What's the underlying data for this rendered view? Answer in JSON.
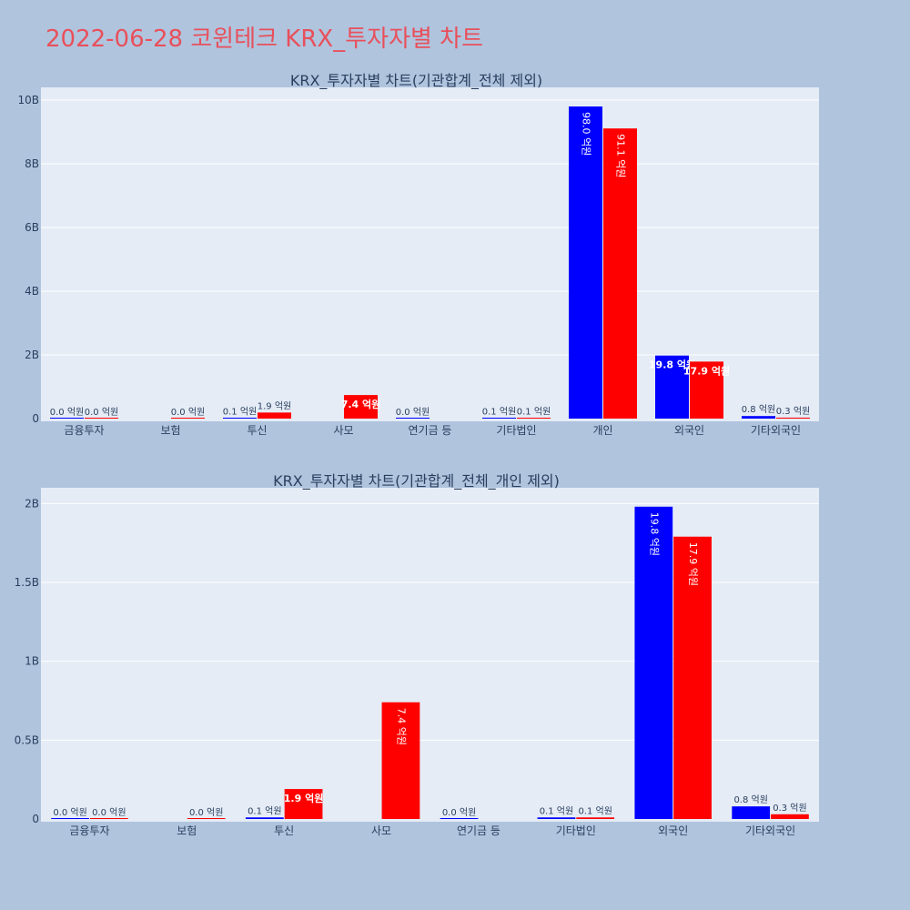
{
  "title": "2022-06-28 코윈테크 KRX_투자자별 차트",
  "colors": {
    "buy": "#0000ff",
    "sell": "#ff0000",
    "plot_bg": "#e5ecf6",
    "page_bg": "#b0c4de"
  },
  "chart_data": [
    {
      "type": "bar",
      "title": "KRX_투자자별 차트(기관합계_전체 제외)",
      "categories": [
        "금융투자",
        "보험",
        "투신",
        "사모",
        "연기금 등",
        "기타법인",
        "개인",
        "외국인",
        "기타외국인"
      ],
      "ylim": [
        0,
        10400000000
      ],
      "yticks": [
        0,
        2000000000,
        4000000000,
        6000000000,
        8000000000,
        10000000000
      ],
      "ytick_labels": [
        "0",
        "2B",
        "4B",
        "6B",
        "8B",
        "10B"
      ],
      "grid": true,
      "series": [
        {
          "color": "#0000ff",
          "values": [
            0,
            null,
            10000000,
            null,
            0,
            10000000,
            9800000000,
            1980000000,
            80000000
          ],
          "labels": [
            "0.0 억원",
            "",
            "0.1 억원",
            "",
            "0.0 억원",
            "0.1 억원",
            "98.0 억원",
            "19.8 억원",
            "0.8 억원"
          ]
        },
        {
          "color": "#ff0000",
          "values": [
            0,
            0,
            190000000,
            740000000,
            null,
            10000000,
            9110000000,
            1790000000,
            30000000
          ],
          "labels": [
            "0.0 억원",
            "0.0 억원",
            "1.9 억원",
            "7.4 억원",
            "",
            "0.1 억원",
            "91.1 억원",
            "17.9 억원",
            "0.3 억원"
          ]
        }
      ]
    },
    {
      "type": "bar",
      "title": "KRX_투자자별 차트(기관합계_전체_개인 제외)",
      "categories": [
        "금융투자",
        "보험",
        "투신",
        "사모",
        "연기금 등",
        "기타법인",
        "외국인",
        "기타외국인"
      ],
      "ylim": [
        0,
        2100000000
      ],
      "yticks": [
        0,
        500000000,
        1000000000,
        1500000000,
        2000000000
      ],
      "ytick_labels": [
        "0",
        "0.5B",
        "1B",
        "1.5B",
        "2B"
      ],
      "grid": true,
      "series": [
        {
          "color": "#0000ff",
          "values": [
            0,
            null,
            10000000,
            null,
            0,
            10000000,
            1980000000,
            80000000
          ],
          "labels": [
            "0.0 억원",
            "",
            "0.1 억원",
            "",
            "0.0 억원",
            "0.1 억원",
            "19.8 억원",
            "0.8 억원"
          ]
        },
        {
          "color": "#ff0000",
          "values": [
            0,
            0,
            190000000,
            740000000,
            null,
            10000000,
            1790000000,
            30000000
          ],
          "labels": [
            "0.0 억원",
            "0.0 억원",
            "1.9 억원",
            "7.4 억원",
            "",
            "0.1 억원",
            "17.9 억원",
            "0.3 억원"
          ]
        }
      ]
    }
  ]
}
